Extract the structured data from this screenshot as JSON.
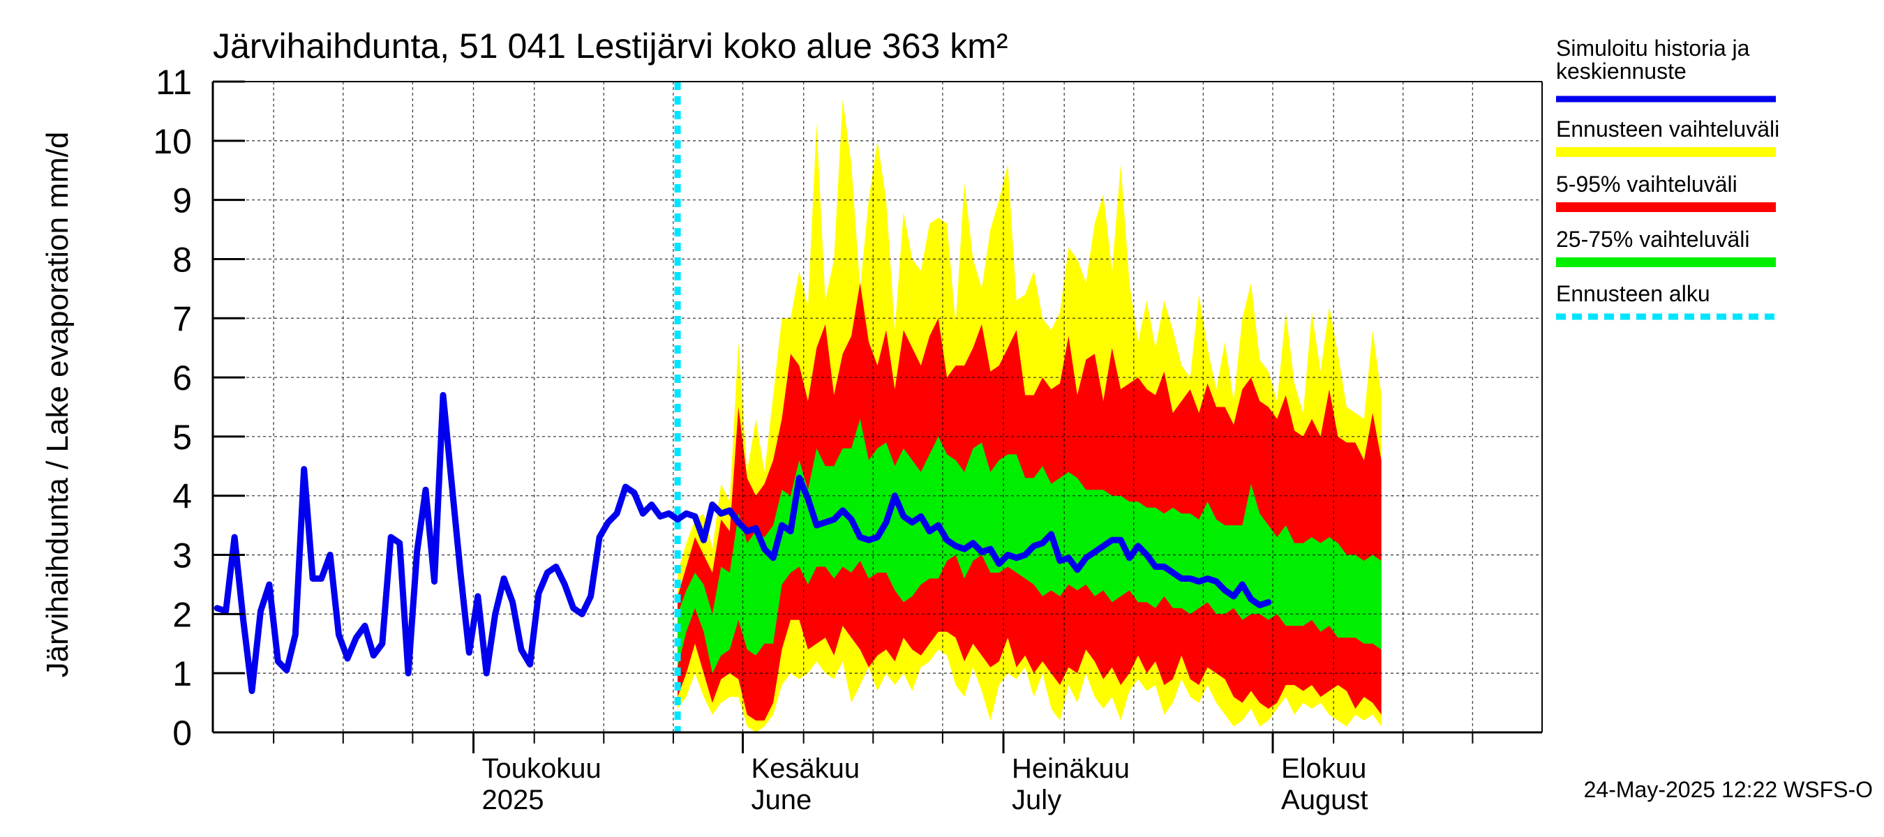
{
  "chart_data": {
    "type": "area",
    "title": "Järvihaihdunta, 51 041 Lestijärvi koko alue 363 km²",
    "ylabel": "Järvihaihdunta / Lake evaporation   mm/d",
    "ylim": [
      0,
      11
    ],
    "yticks": [
      0,
      1,
      2,
      3,
      4,
      5,
      6,
      7,
      8,
      9,
      10,
      11
    ],
    "x_start": "2025-04-01",
    "x_end": "2025-08-31",
    "month_labels": [
      {
        "fi": "Toukokuu",
        "en": "2025",
        "date": "2025-05-01"
      },
      {
        "fi": "Kesäkuu",
        "en": "June",
        "date": "2025-06-01"
      },
      {
        "fi": "Heinäkuu",
        "en": "July",
        "date": "2025-07-01"
      },
      {
        "fi": "Elokuu",
        "en": "August",
        "date": "2025-08-01"
      }
    ],
    "forecast_start": "2025-05-24",
    "legend": [
      {
        "label": "Simuloitu historia ja keskiennuste",
        "color": "#0000ee",
        "style": "line"
      },
      {
        "label": "Ennusteen vaihteluväli",
        "color": "#ffff00",
        "style": "band"
      },
      {
        "label": "5-95% vaihteluväli",
        "color": "#ff0000",
        "style": "band"
      },
      {
        "label": "25-75% vaihteluväli",
        "color": "#00ee00",
        "style": "band"
      },
      {
        "label": "Ennusteen alku",
        "color": "#00e5ff",
        "style": "dashed"
      }
    ],
    "history": {
      "start": "2025-04-01",
      "values": [
        2.1,
        2.05,
        3.3,
        1.9,
        0.7,
        2.05,
        2.5,
        1.2,
        1.05,
        1.65,
        4.45,
        2.6,
        2.6,
        3.0,
        1.65,
        1.25,
        1.6,
        1.8,
        1.3,
        1.5,
        3.3,
        3.2,
        1.0,
        3.05,
        4.1,
        2.55,
        5.7,
        4.2,
        2.7,
        1.35,
        2.3,
        1.0,
        2.0,
        2.6,
        2.2,
        1.4,
        1.15,
        2.35,
        2.7,
        2.8,
        2.5,
        2.1,
        2.0,
        2.3,
        3.3,
        3.55,
        3.7,
        4.15,
        4.05,
        3.7,
        3.85,
        3.65,
        3.7,
        3.6,
        3.7,
        3.65,
        3.25,
        3.85,
        3.7,
        3.75,
        3.55,
        3.4,
        3.45,
        3.1,
        2.95,
        3.5,
        3.4,
        4.3,
        3.95,
        3.5,
        3.55,
        3.6,
        3.75,
        3.6,
        3.3,
        3.25,
        3.3,
        3.55,
        4.0,
        3.65,
        3.55,
        3.65,
        3.4,
        3.5,
        3.25,
        3.15,
        3.1,
        3.2,
        3.05,
        3.1,
        2.85,
        3.0,
        2.95,
        3.0,
        3.15,
        3.2,
        3.35,
        2.9,
        2.95,
        2.75,
        2.95,
        3.05,
        3.15,
        3.25,
        3.25,
        2.95,
        3.15,
        3.0,
        2.8,
        2.8,
        2.7,
        2.6,
        2.6,
        2.55,
        2.6,
        2.55,
        2.4,
        2.3,
        2.5,
        2.25,
        2.15,
        2.2
      ]
    },
    "bands": {
      "start": "2025-05-24",
      "max": [
        2.7,
        3.2,
        3.6,
        3.7,
        3.1,
        4.2,
        3.9,
        6.6,
        4.4,
        5.3,
        4.4,
        5.7,
        7.0,
        7.0,
        7.8,
        7.2,
        10.3,
        7.3,
        8.0,
        10.7,
        9.6,
        7.5,
        9.0,
        10.0,
        9.0,
        6.8,
        8.8,
        8.0,
        7.8,
        8.6,
        8.7,
        8.6,
        6.9,
        9.3,
        8.0,
        7.5,
        8.5,
        9.0,
        9.6,
        7.3,
        7.4,
        7.8,
        7.0,
        6.8,
        7.1,
        8.2,
        8.0,
        7.6,
        8.6,
        9.1,
        7.8,
        9.6,
        7.6,
        6.6,
        7.3,
        6.5,
        7.3,
        6.8,
        6.2,
        6.0,
        7.4,
        6.5,
        5.8,
        6.6,
        5.6,
        7.0,
        7.6,
        6.3,
        6.1,
        5.6,
        7.1,
        5.9,
        5.4,
        7.1,
        6.1,
        7.2,
        6.4,
        5.5,
        5.4,
        5.3,
        6.8,
        5.7
      ],
      "p95": [
        2.3,
        2.8,
        3.3,
        3.0,
        2.7,
        3.6,
        3.4,
        5.5,
        4.3,
        4.0,
        4.2,
        4.6,
        5.3,
        6.4,
        6.2,
        5.6,
        6.5,
        6.9,
        5.7,
        6.4,
        6.7,
        7.6,
        6.6,
        6.2,
        6.8,
        5.8,
        6.8,
        6.5,
        6.2,
        6.7,
        7.0,
        6.0,
        6.2,
        6.2,
        6.5,
        6.9,
        6.1,
        6.2,
        6.5,
        6.8,
        5.7,
        5.7,
        6.0,
        5.8,
        5.9,
        6.7,
        5.7,
        6.3,
        6.4,
        5.6,
        6.5,
        5.8,
        5.9,
        6.0,
        5.8,
        5.7,
        6.1,
        5.4,
        5.6,
        5.8,
        5.4,
        5.9,
        5.5,
        5.5,
        5.2,
        5.8,
        6.0,
        5.6,
        5.5,
        5.3,
        5.7,
        5.1,
        5.0,
        5.3,
        5.0,
        5.8,
        5.0,
        4.9,
        4.9,
        4.6,
        5.4,
        4.6
      ],
      "p75": [
        2.0,
        2.4,
        2.7,
        2.5,
        2.0,
        2.8,
        2.7,
        3.7,
        3.2,
        3.4,
        3.3,
        3.5,
        4.1,
        4.0,
        4.6,
        4.1,
        4.8,
        4.5,
        4.5,
        4.8,
        4.8,
        5.3,
        4.6,
        4.8,
        4.9,
        4.5,
        4.8,
        4.6,
        4.4,
        4.7,
        5.0,
        4.7,
        4.6,
        4.4,
        4.8,
        4.9,
        4.4,
        4.6,
        4.7,
        4.7,
        4.3,
        4.3,
        4.5,
        4.2,
        4.3,
        4.4,
        4.3,
        4.1,
        4.1,
        4.1,
        4.0,
        4.0,
        3.9,
        3.9,
        3.8,
        3.8,
        3.7,
        3.8,
        3.7,
        3.7,
        3.6,
        3.9,
        3.6,
        3.5,
        3.5,
        3.5,
        4.2,
        3.7,
        3.5,
        3.3,
        3.5,
        3.2,
        3.2,
        3.3,
        3.2,
        3.3,
        3.2,
        3.0,
        3.0,
        2.9,
        3.0,
        2.9
      ],
      "p25": [
        1.1,
        1.7,
        2.1,
        1.7,
        1.0,
        1.3,
        1.4,
        1.9,
        1.4,
        1.3,
        1.5,
        1.5,
        2.5,
        2.7,
        2.8,
        2.5,
        2.8,
        2.8,
        2.6,
        2.8,
        2.7,
        2.9,
        2.6,
        2.7,
        2.7,
        2.4,
        2.2,
        2.3,
        2.5,
        2.6,
        2.6,
        2.9,
        3.0,
        2.6,
        2.9,
        3.0,
        2.7,
        2.7,
        2.8,
        2.7,
        2.6,
        2.5,
        2.3,
        2.4,
        2.3,
        2.5,
        2.4,
        2.5,
        2.3,
        2.4,
        2.2,
        2.3,
        2.4,
        2.2,
        2.2,
        2.1,
        2.3,
        2.1,
        2.1,
        2.0,
        2.1,
        2.2,
        2.0,
        2.0,
        2.1,
        1.9,
        2.0,
        2.0,
        1.9,
        2.0,
        1.8,
        1.8,
        1.8,
        1.9,
        1.7,
        1.8,
        1.6,
        1.6,
        1.6,
        1.5,
        1.5,
        1.4
      ],
      "p5": [
        0.6,
        1.0,
        1.5,
        1.0,
        0.5,
        0.9,
        1.0,
        0.9,
        0.3,
        0.2,
        0.2,
        0.5,
        1.4,
        1.9,
        1.9,
        1.4,
        1.5,
        1.6,
        1.3,
        1.8,
        1.6,
        1.4,
        1.1,
        1.3,
        1.4,
        1.2,
        1.6,
        1.4,
        1.3,
        1.5,
        1.7,
        1.7,
        1.6,
        1.2,
        1.5,
        1.3,
        1.1,
        1.2,
        1.6,
        1.1,
        1.3,
        1.0,
        1.2,
        1.0,
        0.8,
        1.1,
        1.0,
        1.4,
        1.2,
        0.9,
        1.1,
        0.8,
        1.0,
        1.3,
        1.0,
        1.2,
        0.8,
        0.9,
        1.3,
        0.9,
        0.8,
        1.1,
        1.0,
        0.9,
        0.6,
        0.5,
        0.7,
        0.5,
        0.4,
        0.5,
        0.8,
        0.8,
        0.7,
        0.8,
        0.6,
        0.7,
        0.8,
        0.7,
        0.4,
        0.6,
        0.5,
        0.3
      ],
      "min": [
        0.4,
        0.6,
        1.0,
        0.6,
        0.3,
        0.5,
        0.6,
        0.6,
        0.1,
        0.0,
        0.1,
        0.3,
        0.8,
        1.0,
        0.9,
        1.0,
        1.2,
        1.0,
        0.9,
        1.2,
        0.5,
        0.8,
        1.1,
        0.7,
        1.0,
        0.8,
        1.0,
        0.7,
        1.1,
        1.2,
        1.4,
        1.3,
        0.8,
        0.6,
        1.1,
        0.7,
        0.2,
        0.8,
        1.0,
        0.9,
        1.1,
        0.6,
        1.0,
        0.4,
        0.2,
        0.8,
        0.5,
        1.0,
        0.6,
        0.4,
        0.6,
        0.2,
        0.7,
        0.9,
        0.7,
        0.8,
        0.3,
        0.5,
        0.9,
        0.6,
        0.5,
        0.8,
        0.5,
        0.3,
        0.1,
        0.2,
        0.4,
        0.1,
        0.2,
        0.4,
        0.6,
        0.3,
        0.5,
        0.4,
        0.5,
        0.3,
        0.2,
        0.1,
        0.3,
        0.2,
        0.3,
        0.1
      ]
    }
  },
  "footer": {
    "timestamp": "24-May-2025 12:22 WSFS-O"
  }
}
